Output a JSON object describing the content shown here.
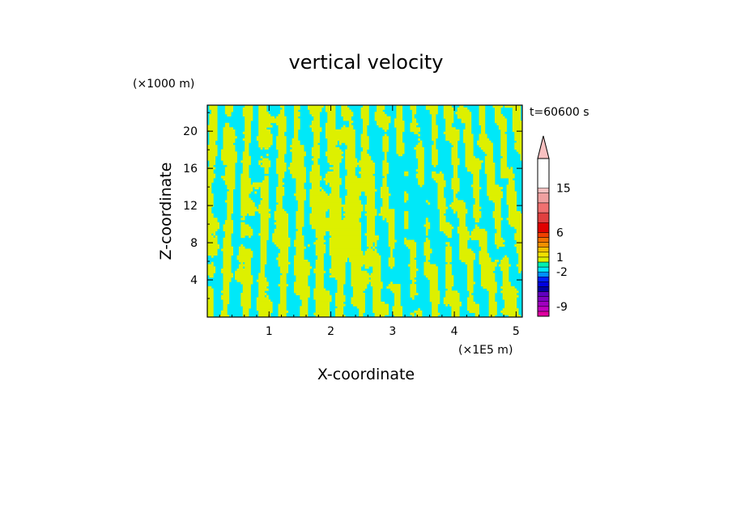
{
  "chart_data": {
    "type": "heatmap",
    "title": "vertical velocity",
    "xlabel": "X-coordinate",
    "ylabel": "Z-coordinate",
    "x_unit": "(×1E5 m)",
    "y_unit": "(×1000 m)",
    "time_label": "t=60600 s",
    "xlim": [
      0,
      5.1
    ],
    "ylim": [
      0,
      22.8
    ],
    "x_ticks": [
      1,
      2,
      3,
      4,
      5
    ],
    "y_ticks": [
      4,
      8,
      12,
      16,
      20
    ],
    "field_colors": {
      "positive": "#ddf000",
      "negative": "#00e8f8"
    },
    "colorbar": {
      "levels": [
        -11,
        -10,
        -9,
        -8,
        -7,
        -6,
        -5,
        -4,
        -3,
        -2,
        -1,
        0,
        1,
        2,
        3,
        4,
        5,
        6,
        8,
        10,
        12,
        14,
        15,
        17,
        19,
        21
      ],
      "colors": [
        "#e000a0",
        "#c000c0",
        "#a000c0",
        "#8000c0",
        "#6000c0",
        "#0000a0",
        "#0000e0",
        "#0020ff",
        "#0090ff",
        "#00e8f8",
        "#00f0b0",
        "#ddf000",
        "#f0e000",
        "#f0c000",
        "#f09000",
        "#f07000",
        "#f04000",
        "#e00000",
        "#e04040",
        "#f07070",
        "#f0a0a0",
        "#f8c0c0"
      ],
      "labels": [
        "15",
        "6",
        "1",
        "-2",
        "-9"
      ],
      "label_levels": [
        15,
        6,
        1,
        -2,
        -9
      ]
    }
  }
}
